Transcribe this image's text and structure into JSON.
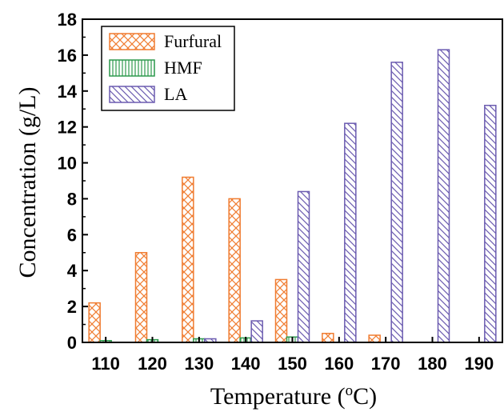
{
  "chart_data": {
    "type": "bar",
    "title": "",
    "xlabel": "Temperature (",
    "xlabel_sup": "o",
    "xlabel_suffix": "C)",
    "ylabel": "Concentration (g/L)",
    "ylim": [
      0,
      18
    ],
    "yticks": [
      "0",
      "2",
      "4",
      "6",
      "8",
      "10",
      "12",
      "14",
      "16",
      "18"
    ],
    "categories": [
      "110",
      "120",
      "130",
      "140",
      "150",
      "160",
      "170",
      "180",
      "190"
    ],
    "series": [
      {
        "name": "Furfural",
        "values": [
          2.2,
          5.0,
          9.2,
          8.0,
          3.5,
          0.5,
          0.4,
          0,
          0
        ],
        "color": "#f07c30",
        "pattern": "crosshatch"
      },
      {
        "name": "HMF",
        "values": [
          0.1,
          0.15,
          0.2,
          0.25,
          0.3,
          0,
          0,
          0,
          0
        ],
        "color": "#2e9a4e",
        "pattern": "vertical"
      },
      {
        "name": "LA",
        "values": [
          0,
          0,
          0.2,
          1.2,
          8.4,
          12.2,
          15.6,
          16.3,
          13.2
        ],
        "color": "#6b5bb0",
        "pattern": "diagonal"
      }
    ],
    "legend_position": "top-left",
    "grid": false
  }
}
